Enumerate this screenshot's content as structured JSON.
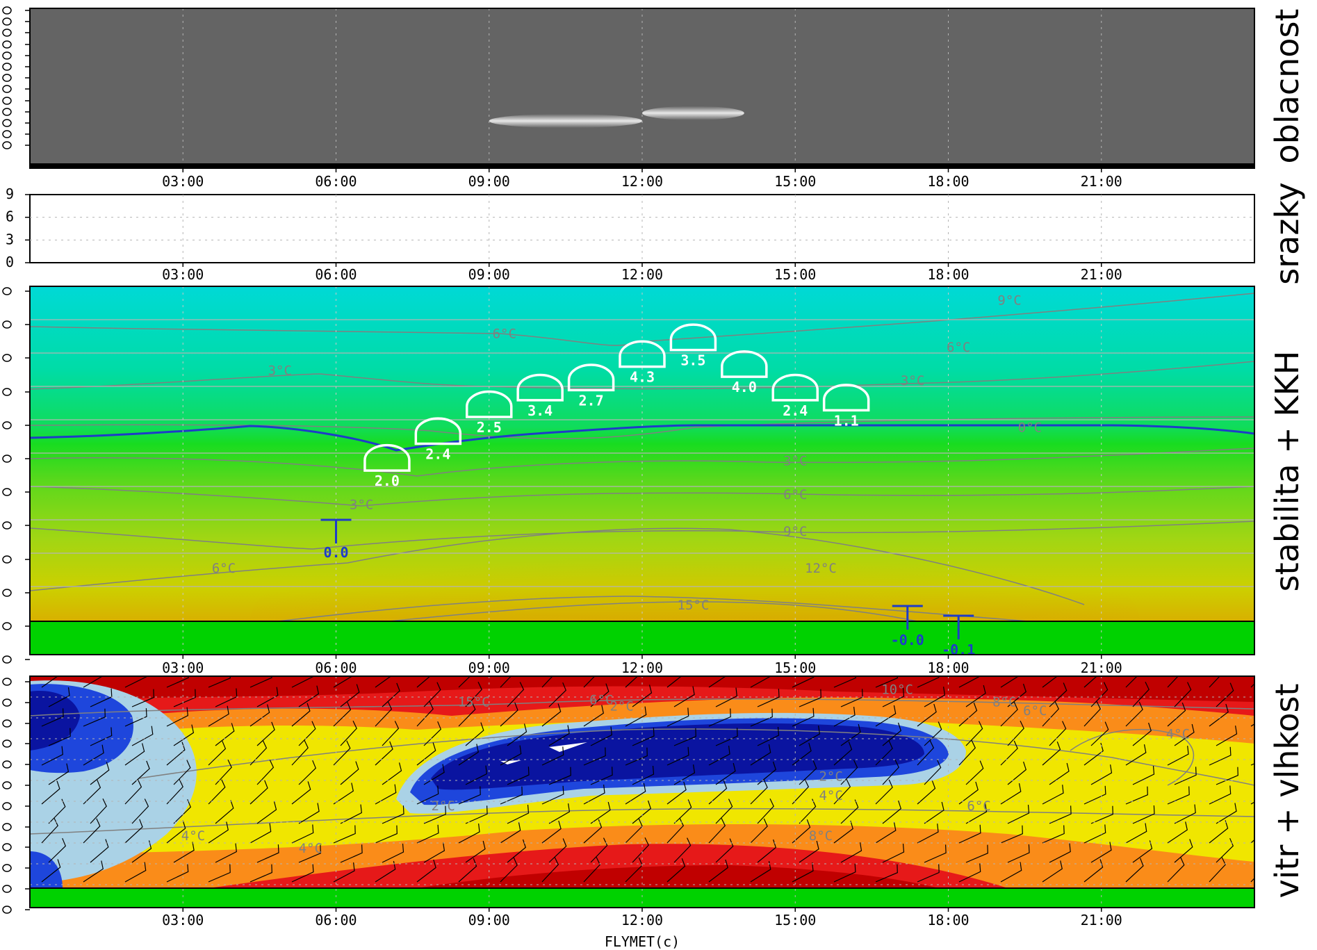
{
  "credit": "FLYMET(c)",
  "chart_data": [
    {
      "type": "heatmap",
      "id": "cloud",
      "side_label": "oblacnost",
      "x_ticks": [
        "03:00",
        "06:00",
        "09:00",
        "12:00",
        "15:00",
        "18:00",
        "21:00"
      ],
      "x_range_hours": [
        0,
        24
      ],
      "grid": true,
      "cloud_patches": [
        {
          "start_hour": 9.0,
          "end_hour": 12.0,
          "level_fraction": 0.28
        },
        {
          "start_hour": 12.0,
          "end_hour": 14.0,
          "level_fraction": 0.33
        }
      ],
      "colors": {
        "background": "#646464",
        "cloud": "#ffffff",
        "ground": "#000000"
      }
    },
    {
      "type": "bar",
      "id": "precip",
      "side_label": "srazky",
      "x_ticks": [
        "03:00",
        "06:00",
        "09:00",
        "12:00",
        "15:00",
        "18:00",
        "21:00"
      ],
      "y_ticks": [
        "9",
        "6",
        "3",
        "0"
      ],
      "ylim": [
        0,
        9
      ],
      "grid": true,
      "values": []
    },
    {
      "type": "heatmap",
      "id": "stability",
      "side_label": "stabilita + KKH",
      "x_ticks": [
        "03:00",
        "06:00",
        "09:00",
        "12:00",
        "15:00",
        "18:00",
        "21:00"
      ],
      "x_range_hours": [
        0,
        24
      ],
      "grid": true,
      "isotherm_labels": [
        {
          "text": "9°C",
          "hour": 19.2,
          "level": 0.96
        },
        {
          "text": "6°C",
          "hour": 9.3,
          "level": 0.86
        },
        {
          "text": "6°C",
          "hour": 18.2,
          "level": 0.82
        },
        {
          "text": "3°C",
          "hour": 4.9,
          "level": 0.75
        },
        {
          "text": "3°C",
          "hour": 17.3,
          "level": 0.72
        },
        {
          "text": "0°C",
          "hour": 19.6,
          "level": 0.58
        },
        {
          "text": "3°C",
          "hour": 15.0,
          "level": 0.48
        },
        {
          "text": "3°C",
          "hour": 6.5,
          "level": 0.35
        },
        {
          "text": "6°C",
          "hour": 15.0,
          "level": 0.38
        },
        {
          "text": "9°C",
          "hour": 15.0,
          "level": 0.27
        },
        {
          "text": "6°C",
          "hour": 3.8,
          "level": 0.16
        },
        {
          "text": "12°C",
          "hour": 15.5,
          "level": 0.16
        },
        {
          "text": "15°C",
          "hour": 13.0,
          "level": 0.05
        }
      ],
      "kkh_caps": [
        {
          "hour": 7.0,
          "value": "2.0",
          "level": 0.45
        },
        {
          "hour": 8.0,
          "value": "2.4",
          "level": 0.53
        },
        {
          "hour": 9.0,
          "value": "2.5",
          "level": 0.61
        },
        {
          "hour": 10.0,
          "value": "3.4",
          "level": 0.66
        },
        {
          "hour": 11.0,
          "value": "2.7",
          "level": 0.69
        },
        {
          "hour": 12.0,
          "value": "4.3",
          "level": 0.76
        },
        {
          "hour": 13.0,
          "value": "3.5",
          "level": 0.81
        },
        {
          "hour": 14.0,
          "value": "4.0",
          "level": 0.73
        },
        {
          "hour": 15.0,
          "value": "2.4",
          "level": 0.66
        },
        {
          "hour": 16.0,
          "value": "1.1",
          "level": 0.63
        }
      ],
      "inversion_markers": [
        {
          "hour": 6.0,
          "value": "0.0"
        },
        {
          "hour": 17.2,
          "value": "-0.0"
        },
        {
          "hour": 18.2,
          "value": "-0.1"
        }
      ],
      "colors": {
        "top": "#00dcd2",
        "middle": "#14dc1e",
        "bottom": "#d2b400",
        "ground": "#00d200",
        "freezing_line": "#1e3cc8"
      }
    },
    {
      "type": "heatmap",
      "id": "wind",
      "side_label": "vitr + vlhkost",
      "x_ticks": [
        "03:00",
        "06:00",
        "09:00",
        "12:00",
        "15:00",
        "18:00",
        "21:00"
      ],
      "x_range_hours": [
        0,
        24
      ],
      "grid": true,
      "isotherm_labels": [
        {
          "text": "10°C",
          "hour": 17.0,
          "level": 0.94
        },
        {
          "text": "15°C",
          "hour": 8.7,
          "level": 0.88
        },
        {
          "text": "8°C",
          "hour": 19.1,
          "level": 0.88
        },
        {
          "text": "6°C",
          "hour": 11.2,
          "level": 0.89
        },
        {
          "text": "6°C",
          "hour": 19.7,
          "level": 0.84
        },
        {
          "text": "2°C",
          "hour": 11.6,
          "level": 0.86
        },
        {
          "text": "4°C",
          "hour": 22.5,
          "level": 0.73
        },
        {
          "text": "2°C",
          "hour": 15.7,
          "level": 0.53
        },
        {
          "text": "4°C",
          "hour": 15.7,
          "level": 0.44
        },
        {
          "text": "2°C",
          "hour": 8.1,
          "level": 0.39
        },
        {
          "text": "6°C",
          "hour": 18.6,
          "level": 0.39
        },
        {
          "text": "4°C",
          "hour": 3.2,
          "level": 0.25
        },
        {
          "text": "4°C",
          "hour": 5.5,
          "level": 0.19
        },
        {
          "text": "8°C",
          "hour": 15.5,
          "level": 0.25
        }
      ],
      "colors": {
        "red": "#e61919",
        "orange": "#fa8c19",
        "yellow": "#f0e600",
        "light_blue": "#aad2e6",
        "blue": "#1e46dc",
        "dark_blue": "#0a14a0",
        "ground": "#00d200"
      }
    }
  ]
}
